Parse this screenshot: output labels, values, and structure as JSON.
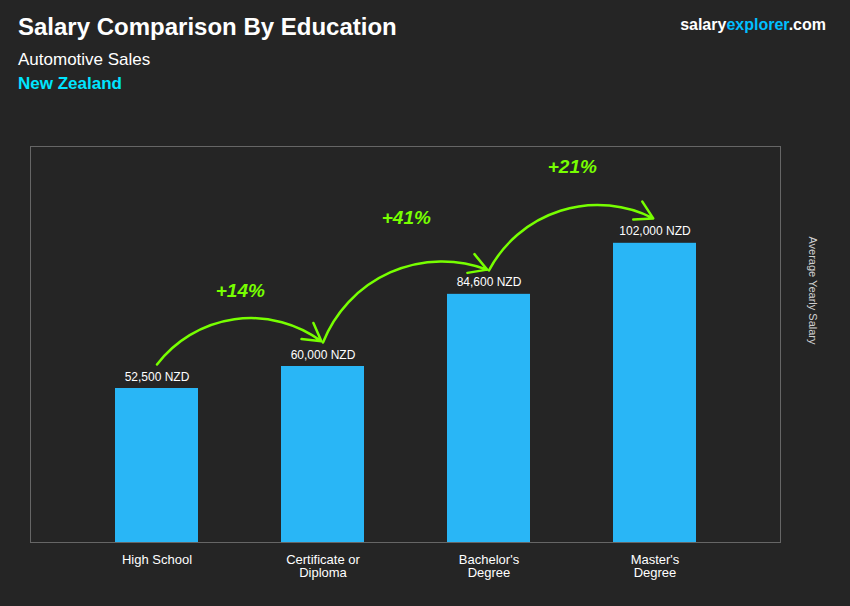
{
  "chart_data": {
    "type": "bar",
    "title": "Salary Comparison By Education",
    "subtitle": "Automotive Sales",
    "country": "New Zealand",
    "ylabel": "Average Yearly Salary",
    "categories": [
      "High School",
      "Certificate or\nDiploma",
      "Bachelor's\nDegree",
      "Master's\nDegree"
    ],
    "values": [
      52500,
      60000,
      84600,
      102000
    ],
    "value_labels": [
      "52,500 NZD",
      "60,000 NZD",
      "84,600 NZD",
      "102,000 NZD"
    ],
    "data_labels": true,
    "pct_changes": [
      "+14%",
      "+41%",
      "+21%"
    ],
    "color": "#29b6f6",
    "ylim": [
      0,
      135000
    ],
    "tick_labels": "x",
    "grid": false,
    "title_color": "#ffffff",
    "subtitle_color": "#ffffff",
    "country_color": "#00e5ff",
    "value_label_color": "#ffffff",
    "pct_color": "#77ff00",
    "xlabel_color": "#ffffff",
    "brand": [
      {
        "text": "salary",
        "color": "#ffffff"
      },
      {
        "text": "explorer",
        "color": "#00bfff"
      },
      {
        "text": ".com",
        "color": "#ffffff"
      }
    ]
  }
}
